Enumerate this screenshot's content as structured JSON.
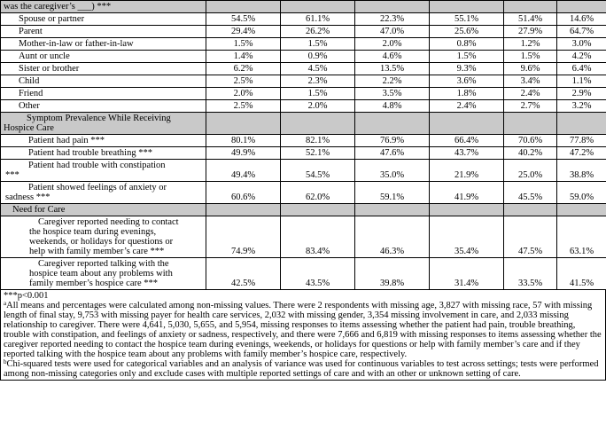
{
  "table": {
    "sections": [
      {
        "label": "was the caregiver’s ___) ***",
        "rows": [
          {
            "label": "Spouse or partner",
            "values": [
              "54.5%",
              "61.1%",
              "22.3%",
              "55.1%",
              "51.4%",
              "14.6%"
            ]
          },
          {
            "label": "Parent",
            "values": [
              "29.4%",
              "26.2%",
              "47.0%",
              "25.6%",
              "27.9%",
              "64.7%"
            ]
          },
          {
            "label": "Mother-in-law or father-in-law",
            "values": [
              "1.5%",
              "1.5%",
              "2.0%",
              "0.8%",
              "1.2%",
              "3.0%"
            ]
          },
          {
            "label": "Aunt or uncle",
            "values": [
              "1.4%",
              "0.9%",
              "4.6%",
              "1.5%",
              "1.5%",
              "4.2%"
            ]
          },
          {
            "label": "Sister or brother",
            "values": [
              "6.2%",
              "4.5%",
              "13.5%",
              "9.3%",
              "9.6%",
              "6.4%"
            ]
          },
          {
            "label": "Child",
            "values": [
              "2.5%",
              "2.3%",
              "2.2%",
              "3.6%",
              "3.4%",
              "1.1%"
            ]
          },
          {
            "label": "Friend",
            "values": [
              "2.0%",
              "1.5%",
              "3.5%",
              "1.8%",
              "2.4%",
              "2.9%"
            ]
          },
          {
            "label": "Other",
            "values": [
              "2.5%",
              "2.0%",
              "4.8%",
              "2.4%",
              "2.7%",
              "3.2%"
            ]
          }
        ]
      },
      {
        "label": "Symptom Prevalence While Receiving Hospice Care",
        "rows": [
          {
            "label": "Patient had pain ***",
            "values": [
              "80.1%",
              "82.1%",
              "76.9%",
              "66.4%",
              "70.6%",
              "77.8%"
            ]
          },
          {
            "label": "Patient had trouble breathing ***",
            "values": [
              "49.9%",
              "52.1%",
              "47.6%",
              "43.7%",
              "40.2%",
              "47.2%"
            ]
          },
          {
            "label": "Patient had trouble with constipation ***",
            "values": [
              "49.4%",
              "54.5%",
              "35.0%",
              "21.9%",
              "25.0%",
              "38.8%"
            ]
          },
          {
            "label": "Patient showed feelings of anxiety or sadness ***",
            "values": [
              "60.6%",
              "62.0%",
              "59.1%",
              "41.9%",
              "45.5%",
              "59.0%"
            ]
          }
        ]
      },
      {
        "label": "Need for Care",
        "rows": [
          {
            "label": "Caregiver reported needing to contact the hospice team during evenings, weekends, or holidays for questions or help with family member’s care ***",
            "values": [
              "74.9%",
              "83.4%",
              "46.3%",
              "35.4%",
              "47.5%",
              "63.1%"
            ]
          },
          {
            "label": "Caregiver reported talking with the hospice team about any problems with family member’s hospice care ***",
            "values": [
              "42.5%",
              "43.5%",
              "39.8%",
              "31.4%",
              "33.5%",
              "41.5%"
            ]
          }
        ]
      }
    ]
  },
  "footnotes": [
    {
      "text": "***p<0.001"
    },
    {
      "marker": "a",
      "text": "All means and percentages were calculated among non-missing values. There were 2 respondents with missing age, 3,827 with missing race, 57 with missing length of final stay, 9,753 with missing payer for health care services, 2,032 with missing gender, 3,354 missing involvement in care, and 2,033 missing relationship to caregiver. There were 4,641, 5,030, 5,655, and 5,954, missing responses to items assessing whether the patient had pain, trouble breathing, trouble with constipation, and feelings of anxiety or sadness, respectively, and there were 7,666 and 6,819 with missing responses to items assessing whether the caregiver reported needing to contact the hospice team during evenings, weekends, or holidays for questions or help with family member’s care and if they reported talking with the hospice team about any problems with family member’s hospice care, respectively."
    },
    {
      "marker": "b",
      "text": "Chi-squared tests were used for categorical variables and an analysis of variance was used for continuous variables to test across settings; tests were performed among non-missing categories only and exclude cases with multiple reported settings of care and with an other or unknown setting of care."
    }
  ]
}
